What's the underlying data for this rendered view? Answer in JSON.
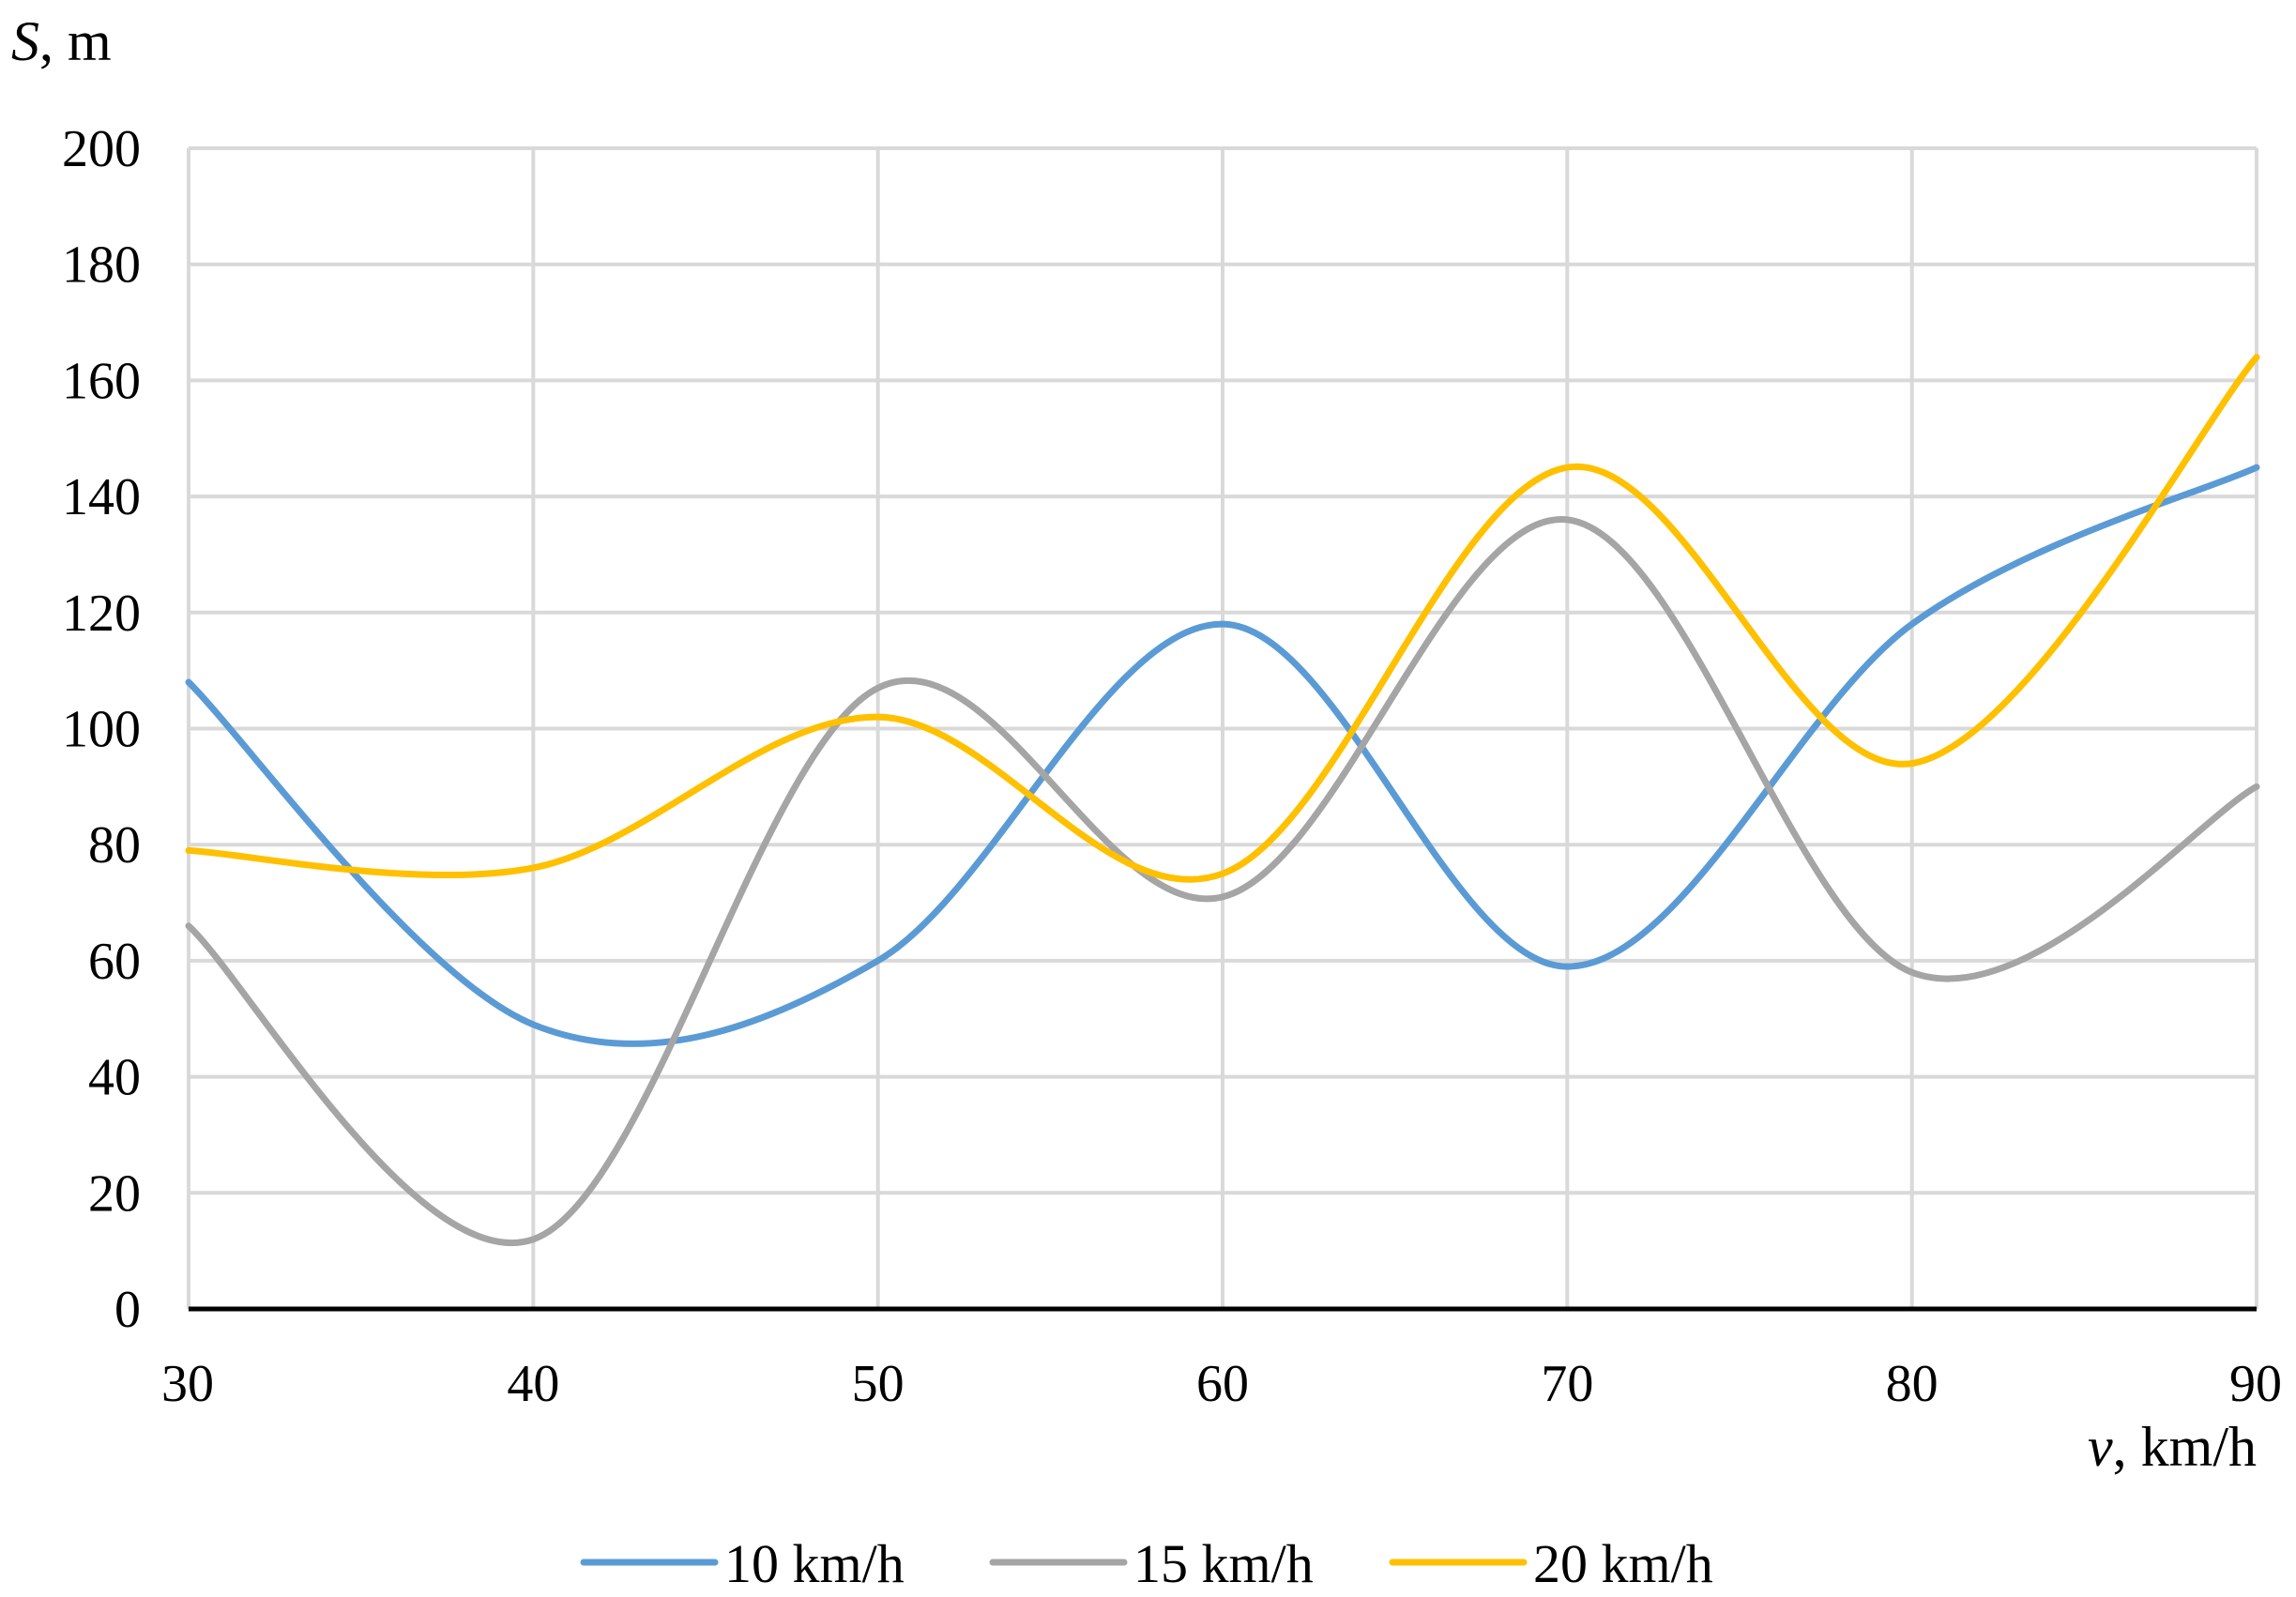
{
  "chart_data": {
    "type": "line",
    "smooth": true,
    "xlabel": {
      "var": "v",
      "unit": ", km/h"
    },
    "ylabel": {
      "var": "S",
      "unit": ", m"
    },
    "xlim": [
      30,
      90
    ],
    "ylim": [
      0,
      200
    ],
    "xticks": [
      30,
      40,
      50,
      60,
      70,
      80,
      90
    ],
    "yticks": [
      0,
      20,
      40,
      60,
      80,
      100,
      120,
      140,
      160,
      180,
      200
    ],
    "grid": true,
    "legend": "bottom",
    "x": [
      30,
      40,
      50,
      60,
      70,
      80,
      90
    ],
    "series": [
      {
        "name": "10 km/h",
        "color": "#5B9BD5",
        "values": [
          108,
          49,
          60,
          118,
          59,
          118,
          145
        ]
      },
      {
        "name": "15 km/h",
        "color": "#A5A5A5",
        "values": [
          66,
          12,
          107,
          71,
          136,
          58,
          90
        ]
      },
      {
        "name": "20 km/h",
        "color": "#FFC000",
        "values": [
          79,
          76,
          102,
          75,
          145,
          94,
          164
        ]
      }
    ]
  }
}
